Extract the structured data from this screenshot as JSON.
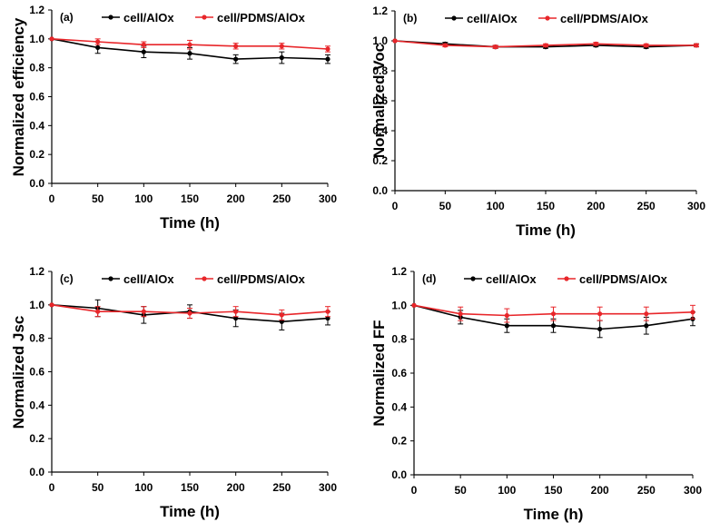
{
  "chart_data": [
    {
      "type": "line",
      "panel": "(a)",
      "title": "",
      "xlabel": "Time (h)",
      "ylabel": "Normalized efficiency",
      "x": [
        0,
        50,
        100,
        150,
        200,
        250,
        300
      ],
      "x_ticks": [
        "0",
        "50",
        "100",
        "150",
        "200",
        "250",
        "300"
      ],
      "y_ticks": [
        "0.0",
        "0.2",
        "0.4",
        "0.6",
        "0.8",
        "1.0",
        "1.2"
      ],
      "xlim": [
        0,
        300
      ],
      "ylim": [
        0,
        1.2
      ],
      "legend": "top",
      "series": [
        {
          "name": "cell/AlOx",
          "color": "#000000",
          "values": [
            1.0,
            0.94,
            0.91,
            0.9,
            0.86,
            0.87,
            0.86
          ],
          "errors": [
            0.0,
            0.04,
            0.04,
            0.04,
            0.03,
            0.04,
            0.03
          ]
        },
        {
          "name": "cell/PDMS/AlOx",
          "color": "#e8262a",
          "values": [
            1.0,
            0.98,
            0.96,
            0.96,
            0.95,
            0.95,
            0.93
          ],
          "errors": [
            0.0,
            0.02,
            0.02,
            0.03,
            0.02,
            0.02,
            0.02
          ]
        }
      ]
    },
    {
      "type": "line",
      "panel": "(b)",
      "title": "",
      "xlabel": "Time (h)",
      "ylabel": "Normalized Voc",
      "x": [
        0,
        50,
        100,
        150,
        200,
        250,
        300
      ],
      "x_ticks": [
        "0",
        "50",
        "100",
        "150",
        "200",
        "250",
        "300"
      ],
      "y_ticks": [
        "0.0",
        "0.2",
        "0.4",
        "0.6",
        "0.8",
        "1.0",
        "1.2"
      ],
      "xlim": [
        0,
        300
      ],
      "ylim": [
        0,
        1.2
      ],
      "legend": "top",
      "series": [
        {
          "name": "cell/AlOx",
          "color": "#000000",
          "values": [
            1.0,
            0.98,
            0.96,
            0.96,
            0.97,
            0.96,
            0.97
          ],
          "errors": [
            0.0,
            0.01,
            0.01,
            0.01,
            0.01,
            0.01,
            0.01
          ]
        },
        {
          "name": "cell/PDMS/AlOx",
          "color": "#e8262a",
          "values": [
            1.0,
            0.97,
            0.96,
            0.97,
            0.98,
            0.97,
            0.97
          ],
          "errors": [
            0.0,
            0.01,
            0.01,
            0.01,
            0.01,
            0.01,
            0.01
          ]
        }
      ]
    },
    {
      "type": "line",
      "panel": "(c)",
      "title": "",
      "xlabel": "Time (h)",
      "ylabel": "Normalized Jsc",
      "x": [
        0,
        50,
        100,
        150,
        200,
        250,
        300
      ],
      "x_ticks": [
        "0",
        "50",
        "100",
        "150",
        "200",
        "250",
        "300"
      ],
      "y_ticks": [
        "0.0",
        "0.2",
        "0.4",
        "0.6",
        "0.8",
        "1.0",
        "1.2"
      ],
      "xlim": [
        0,
        300
      ],
      "ylim": [
        0,
        1.2
      ],
      "legend": "top",
      "series": [
        {
          "name": "cell/AlOx",
          "color": "#000000",
          "values": [
            1.0,
            0.98,
            0.94,
            0.96,
            0.92,
            0.9,
            0.92
          ],
          "errors": [
            0.0,
            0.05,
            0.05,
            0.04,
            0.05,
            0.05,
            0.04
          ]
        },
        {
          "name": "cell/PDMS/AlOx",
          "color": "#e8262a",
          "values": [
            1.0,
            0.96,
            0.96,
            0.95,
            0.96,
            0.94,
            0.96
          ],
          "errors": [
            0.0,
            0.03,
            0.03,
            0.03,
            0.03,
            0.03,
            0.03
          ]
        }
      ]
    },
    {
      "type": "line",
      "panel": "(d)",
      "title": "",
      "xlabel": "Time (h)",
      "ylabel": "Normalized FF",
      "x": [
        0,
        50,
        100,
        150,
        200,
        250,
        300
      ],
      "x_ticks": [
        "0",
        "50",
        "100",
        "150",
        "200",
        "250",
        "300"
      ],
      "y_ticks": [
        "0.0",
        "0.2",
        "0.4",
        "0.6",
        "0.8",
        "1.0",
        "1.2"
      ],
      "xlim": [
        0,
        300
      ],
      "ylim": [
        0,
        1.2
      ],
      "legend": "top",
      "series": [
        {
          "name": "cell/AlOx",
          "color": "#000000",
          "values": [
            1.0,
            0.93,
            0.88,
            0.88,
            0.86,
            0.88,
            0.92
          ],
          "errors": [
            0.0,
            0.04,
            0.04,
            0.04,
            0.05,
            0.05,
            0.04
          ]
        },
        {
          "name": "cell/PDMS/AlOx",
          "color": "#e8262a",
          "values": [
            1.0,
            0.95,
            0.94,
            0.95,
            0.95,
            0.95,
            0.96
          ],
          "errors": [
            0.0,
            0.04,
            0.04,
            0.04,
            0.04,
            0.04,
            0.04
          ]
        }
      ]
    }
  ]
}
